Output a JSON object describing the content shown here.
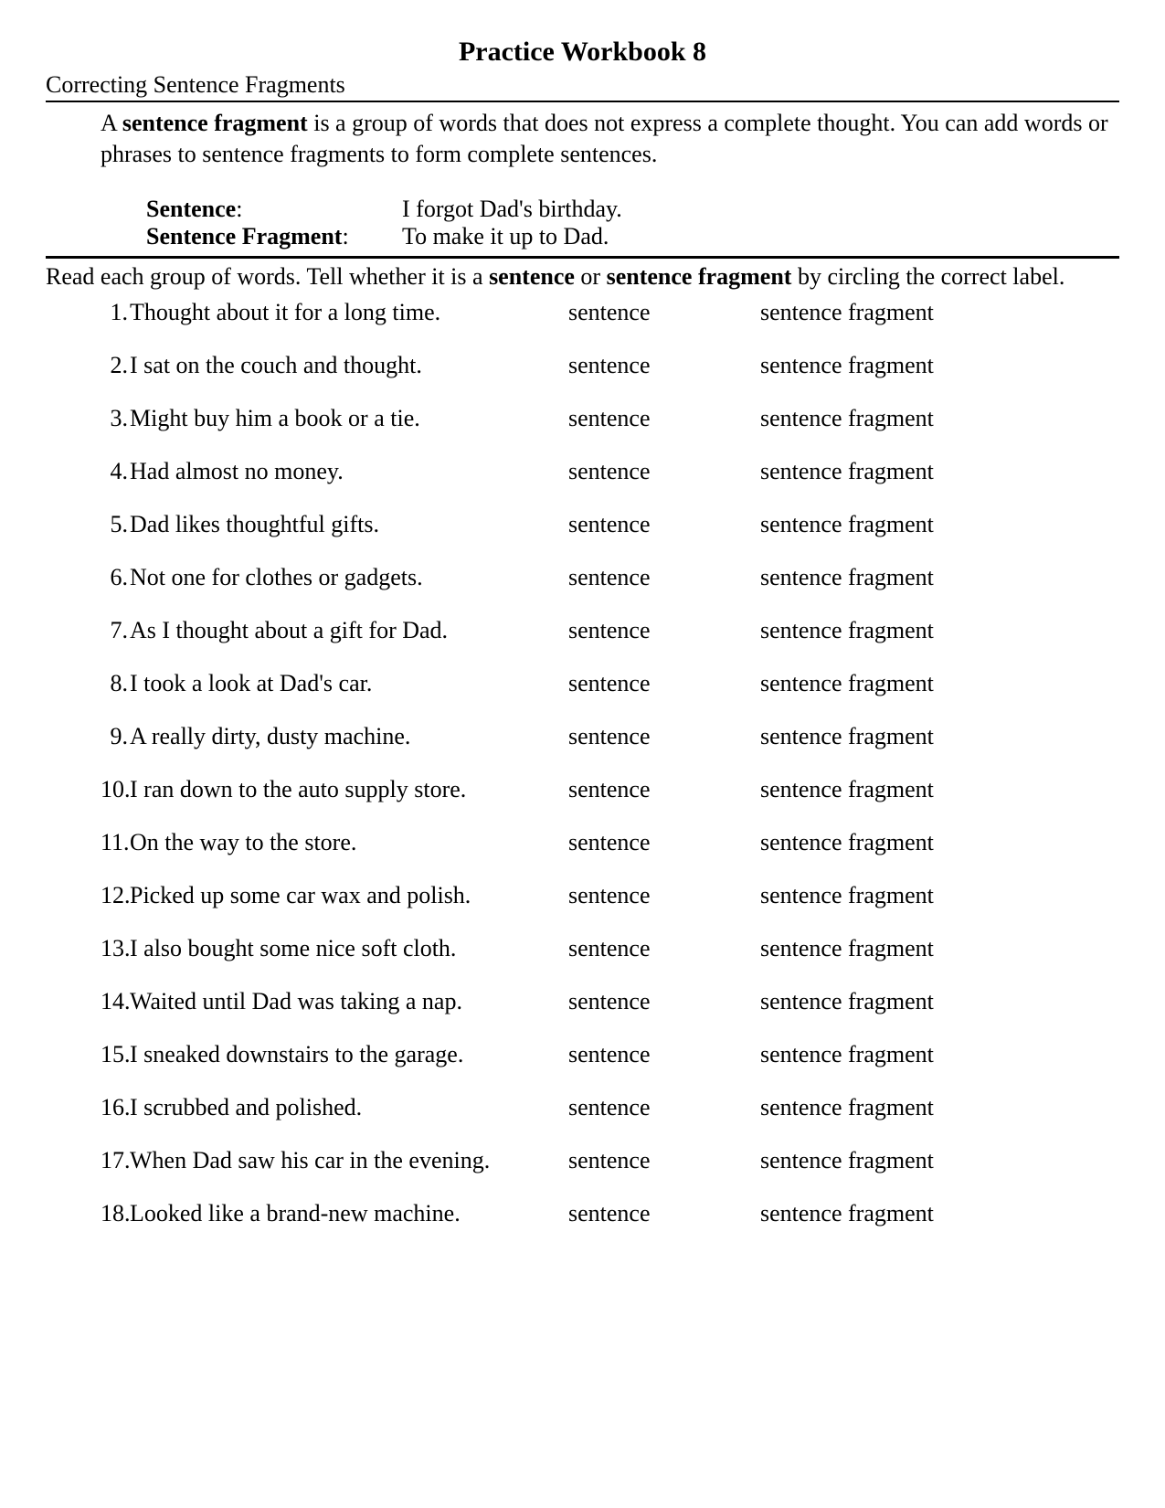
{
  "title": "Practice Workbook 8",
  "subtitle": "Correcting Sentence Fragments",
  "intro_pre": "A ",
  "intro_bold": "sentence fragment",
  "intro_post": " is a group of words that does not express a complete thought.  You can add words or phrases to sentence fragments to form complete sentences.",
  "example1_label": "Sentence",
  "example1_text": "I forgot Dad's birthday.",
  "example2_label": "Sentence Fragment",
  "example2_text": "To make it up to Dad.",
  "instr_pre": "Read each group of words.  Tell whether it is a ",
  "instr_bold1": "sentence",
  "instr_mid": " or ",
  "instr_bold2": "sentence fragment",
  "instr_post": " by circling the correct label.",
  "opt1": "sentence",
  "opt2": "sentence fragment",
  "items": [
    {
      "n": "1.",
      "t": " Thought about it for a long time."
    },
    {
      "n": "2.",
      "t": " I sat on the couch and thought."
    },
    {
      "n": "3.",
      "t": " Might buy him a book or a tie."
    },
    {
      "n": "4.",
      "t": " Had almost no money."
    },
    {
      "n": "5.",
      "t": " Dad likes thoughtful gifts."
    },
    {
      "n": "6.",
      "t": " Not one for clothes or gadgets."
    },
    {
      "n": "7.",
      "t": " As I thought about a gift for Dad."
    },
    {
      "n": "8.",
      "t": " I took a look at Dad's car."
    },
    {
      "n": "9.",
      "t": " A really dirty, dusty machine."
    },
    {
      "n": "10.",
      "t": "I ran down to the auto supply store."
    },
    {
      "n": "11.",
      "t": "On the way to the store."
    },
    {
      "n": "12.",
      "t": "Picked up some car wax and polish."
    },
    {
      "n": "13.",
      "t": "I also bought some nice soft cloth."
    },
    {
      "n": "14.",
      "t": " Waited until Dad was taking a nap."
    },
    {
      "n": "15.",
      "t": "I sneaked downstairs to the garage."
    },
    {
      "n": "16.",
      "t": "I scrubbed and polished."
    },
    {
      "n": "17.",
      "t": "When Dad saw his car in the evening."
    },
    {
      "n": "18.",
      "t": "Looked like a brand-new machine."
    }
  ]
}
